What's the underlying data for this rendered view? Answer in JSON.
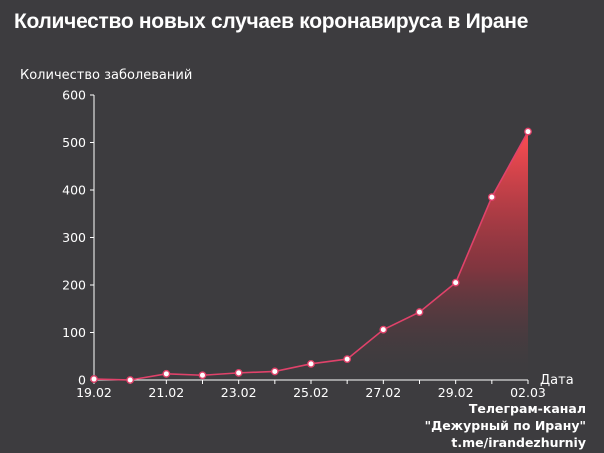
{
  "header": {
    "title": "Количество новых случаев коронавируса в Иране"
  },
  "credits": {
    "line1": "Телеграм-канал",
    "line2": "\"Дежурный по Ирану\"",
    "line3": "t.me/irandezhurniy"
  },
  "colors": {
    "background": "#3d3c3f",
    "line": "#e0426a",
    "marker_fill": "#ffffff",
    "area_top": "#ff4d52",
    "axis": "#ffffff"
  },
  "chart_data": {
    "type": "area",
    "title": "Количество новых случаев коронавируса в Иране",
    "xlabel": "Дата",
    "ylabel": "Количество заболеваний",
    "ylim": [
      0,
      600
    ],
    "yticks": [
      0,
      100,
      200,
      300,
      400,
      500,
      600
    ],
    "x": [
      "19.02",
      "20.02",
      "21.02",
      "22.02",
      "23.02",
      "24.02",
      "25.02",
      "26.02",
      "27.02",
      "28.02",
      "29.02",
      "01.03",
      "02.03"
    ],
    "xtick_labels": [
      "19.02",
      "21.02",
      "23.02",
      "25.02",
      "27.02",
      "29.02",
      "02.03"
    ],
    "series": [
      {
        "values": [
          2,
          0,
          13,
          10,
          15,
          18,
          34,
          44,
          106,
          143,
          205,
          385,
          523
        ]
      }
    ],
    "grid": false,
    "legend": "none"
  }
}
